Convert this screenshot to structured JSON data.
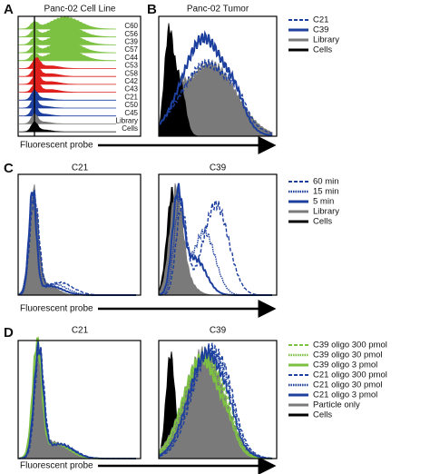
{
  "panels": [
    {
      "letter": "A",
      "title": "Panc-02 Cell Line",
      "track_labels": [
        "C60",
        "C56",
        "C39",
        "C57",
        "C44",
        "C53",
        "C58",
        "C42",
        "C43",
        "C21",
        "C50",
        "C45",
        "Library",
        "Cells"
      ],
      "x_label": "Fluorescent probe"
    },
    {
      "letter": "B",
      "title": "Panc-02 Tumor",
      "legend": [
        "C21",
        "C39",
        "Library",
        "Cells"
      ]
    },
    {
      "letter": "C",
      "titles": [
        "C21",
        "C39"
      ],
      "legend": [
        "60 min",
        "15 min",
        "5 min",
        "Library",
        "Cells"
      ],
      "x_label": "Fluorescent probe"
    },
    {
      "letter": "D",
      "titles": [
        "C21",
        "C39"
      ],
      "legend": [
        "C39 oligo 300 pmol",
        "C39 oligo 30 pmol",
        "C39 oligo 3 pmol",
        "C21 oligo 300 pmol",
        "C21 oligo 30 pmol",
        "C21 oligo 3 pmol",
        "Particle only",
        "Cells"
      ],
      "x_label": "Fluorescent probe"
    }
  ]
}
